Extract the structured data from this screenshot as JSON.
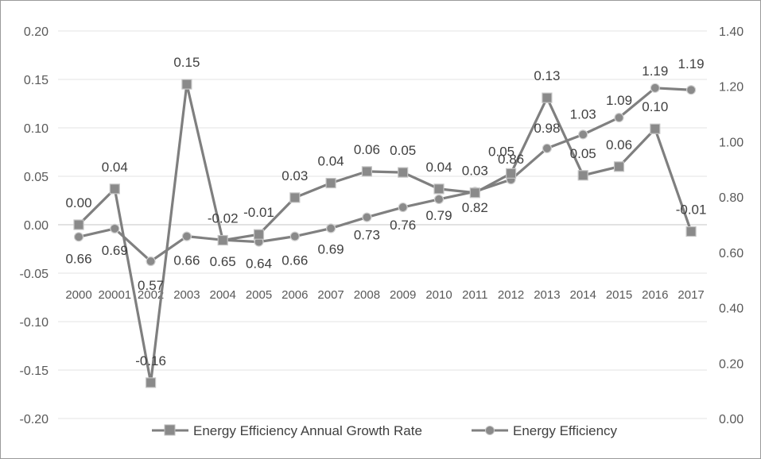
{
  "chart_data": {
    "type": "line",
    "title": "",
    "categories": [
      "2000",
      "20001",
      "2002",
      "2003",
      "2004",
      "2005",
      "2006",
      "2007",
      "2008",
      "2009",
      "2010",
      "2011",
      "2012",
      "2013",
      "2014",
      "2015",
      "2016",
      "2017"
    ],
    "left_axis": {
      "range": [
        -0.2,
        0.2
      ],
      "ticks": [
        "0.20",
        "0.15",
        "0.10",
        "0.05",
        "0.00",
        "-0.05",
        "-0.10",
        "-0.15",
        "-0.20"
      ]
    },
    "right_axis": {
      "range": [
        0,
        1.4
      ],
      "ticks": [
        "1.40",
        "1.20",
        "1.00",
        "0.80",
        "0.60",
        "0.40",
        "0.20",
        "0.00"
      ]
    },
    "series": [
      {
        "name": "Energy Efficiency Annual Growth Rate",
        "axis": "left",
        "marker": "square",
        "color": "#7f7f7f",
        "values": [
          0.0,
          0.037,
          -0.163,
          0.145,
          -0.016,
          -0.01,
          0.028,
          0.043,
          0.055,
          0.054,
          0.037,
          0.033,
          0.053,
          0.131,
          0.051,
          0.06,
          0.099,
          -0.007
        ],
        "labels": [
          "0.00",
          "0.04",
          "-0.16",
          "0.15",
          "-0.02",
          "-0.01",
          "0.03",
          "0.04",
          "0.06",
          "0.05",
          "0.04",
          "0.03",
          "0.05",
          "0.13",
          "0.05",
          "0.06",
          "0.10",
          "-0.01"
        ]
      },
      {
        "name": "Energy Efficiency",
        "axis": "right",
        "marker": "circle",
        "color": "#808080",
        "values": [
          0.656,
          0.686,
          0.568,
          0.658,
          0.645,
          0.638,
          0.658,
          0.687,
          0.727,
          0.763,
          0.792,
          0.82,
          0.863,
          0.976,
          1.026,
          1.087,
          1.194,
          1.187
        ],
        "labels": [
          "0.66",
          "0.69",
          "0.57",
          "0.66",
          "0.65",
          "0.64",
          "0.66",
          "0.69",
          "0.73",
          "0.76",
          "0.79",
          "0.82",
          "0.86",
          "0.98",
          "1.03",
          "1.09",
          "1.19",
          "1.19"
        ]
      }
    ],
    "legend_position": "bottom",
    "gridlines": true
  },
  "legend": {
    "growth_label": "Energy Efficiency Annual Growth Rate",
    "efficiency_label": "Energy Efficiency"
  }
}
